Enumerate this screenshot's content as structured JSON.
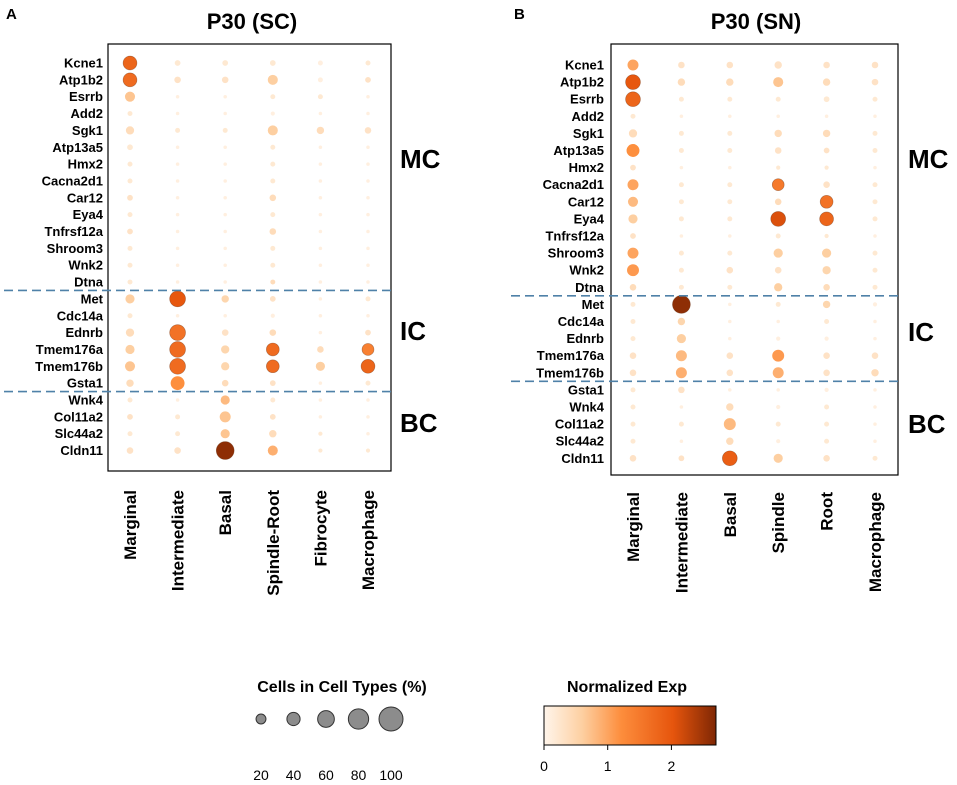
{
  "colors": {
    "cmap_low": "#fff5eb",
    "cmap_mid": "#fd8d3c",
    "cmap_high": "#e6550d",
    "cmap_max": "#7f2704",
    "divider": "#4f81a8"
  },
  "chart_data": [
    {
      "type": "dotplot",
      "panel_label": "A",
      "title": "P30 (SC)",
      "genes": [
        "Kcne1",
        "Atp1b2",
        "Esrrb",
        "Add2",
        "Sgk1",
        "Atp13a5",
        "Hmx2",
        "Cacna2d1",
        "Car12",
        "Eya4",
        "Tnfrsf12a",
        "Shroom3",
        "Wnk2",
        "Dtna",
        "Met",
        "Cdc14a",
        "Ednrb",
        "Tmem176a",
        "Tmem176b",
        "Gsta1",
        "Wnk4",
        "Col11a2",
        "Slc44a2",
        "Cldn11"
      ],
      "cell_types": [
        "Marginal",
        "Intermediate",
        "Basal",
        "Spindle-Root",
        "Fibrocyte",
        "Macrophage"
      ],
      "groups": [
        {
          "label": "MC",
          "from": 0,
          "to": 13
        },
        {
          "label": "IC",
          "from": 14,
          "to": 19
        },
        {
          "label": "BC",
          "from": 20,
          "to": 23
        }
      ],
      "pct": [
        [
          70,
          25,
          25,
          25,
          20,
          20
        ],
        [
          70,
          30,
          30,
          50,
          20,
          25
        ],
        [
          50,
          10,
          10,
          20,
          20,
          10
        ],
        [
          20,
          10,
          10,
          15,
          10,
          10
        ],
        [
          40,
          20,
          20,
          50,
          35,
          30
        ],
        [
          25,
          10,
          10,
          20,
          10,
          10
        ],
        [
          20,
          10,
          10,
          20,
          10,
          10
        ],
        [
          20,
          10,
          10,
          20,
          10,
          10
        ],
        [
          25,
          10,
          10,
          30,
          10,
          10
        ],
        [
          20,
          10,
          10,
          20,
          10,
          10
        ],
        [
          25,
          10,
          10,
          30,
          10,
          10
        ],
        [
          20,
          10,
          10,
          20,
          10,
          10
        ],
        [
          20,
          10,
          10,
          20,
          10,
          10
        ],
        [
          20,
          10,
          10,
          20,
          10,
          10
        ],
        [
          45,
          80,
          35,
          25,
          10,
          20
        ],
        [
          20,
          10,
          10,
          15,
          10,
          10
        ],
        [
          40,
          80,
          30,
          30,
          10,
          25
        ],
        [
          45,
          80,
          40,
          65,
          30,
          60
        ],
        [
          50,
          80,
          40,
          65,
          45,
          70
        ],
        [
          35,
          70,
          30,
          25,
          10,
          20
        ],
        [
          20,
          10,
          45,
          20,
          10,
          10
        ],
        [
          25,
          20,
          55,
          25,
          10,
          10
        ],
        [
          20,
          20,
          45,
          35,
          15,
          10
        ],
        [
          30,
          30,
          90,
          50,
          15,
          15
        ]
      ],
      "exp": [
        [
          1.8,
          0.2,
          0.2,
          0.2,
          0.1,
          0.2
        ],
        [
          1.7,
          0.3,
          0.3,
          0.6,
          0.1,
          0.3
        ],
        [
          0.7,
          0.1,
          0.1,
          0.2,
          0.2,
          0.1
        ],
        [
          0.2,
          0.1,
          0.1,
          0.1,
          0.1,
          0.1
        ],
        [
          0.4,
          0.2,
          0.2,
          0.6,
          0.4,
          0.3
        ],
        [
          0.2,
          0.1,
          0.1,
          0.2,
          0.1,
          0.1
        ],
        [
          0.2,
          0.1,
          0.1,
          0.2,
          0.1,
          0.1
        ],
        [
          0.2,
          0.1,
          0.1,
          0.2,
          0.1,
          0.1
        ],
        [
          0.3,
          0.1,
          0.1,
          0.4,
          0.1,
          0.1
        ],
        [
          0.2,
          0.1,
          0.1,
          0.2,
          0.1,
          0.1
        ],
        [
          0.3,
          0.1,
          0.1,
          0.4,
          0.1,
          0.1
        ],
        [
          0.2,
          0.1,
          0.1,
          0.2,
          0.1,
          0.1
        ],
        [
          0.2,
          0.1,
          0.1,
          0.2,
          0.1,
          0.1
        ],
        [
          0.2,
          0.1,
          0.1,
          0.4,
          0.1,
          0.1
        ],
        [
          0.6,
          2.0,
          0.5,
          0.3,
          0.1,
          0.2
        ],
        [
          0.2,
          0.1,
          0.1,
          0.1,
          0.1,
          0.1
        ],
        [
          0.4,
          1.6,
          0.3,
          0.4,
          0.1,
          0.3
        ],
        [
          0.6,
          1.7,
          0.5,
          1.7,
          0.4,
          1.4
        ],
        [
          0.7,
          1.7,
          0.5,
          1.7,
          0.6,
          1.8
        ],
        [
          0.4,
          1.2,
          0.4,
          0.3,
          0.1,
          0.2
        ],
        [
          0.2,
          0.1,
          0.8,
          0.2,
          0.1,
          0.1
        ],
        [
          0.3,
          0.2,
          0.7,
          0.3,
          0.1,
          0.1
        ],
        [
          0.2,
          0.2,
          0.7,
          0.4,
          0.2,
          0.1
        ],
        [
          0.3,
          0.3,
          2.6,
          0.9,
          0.2,
          0.2
        ]
      ]
    },
    {
      "type": "dotplot",
      "panel_label": "B",
      "title": "P30 (SN)",
      "genes": [
        "Kcne1",
        "Atp1b2",
        "Esrrb",
        "Add2",
        "Sgk1",
        "Atp13a5",
        "Hmx2",
        "Cacna2d1",
        "Car12",
        "Eya4",
        "Tnfrsf12a",
        "Shroom3",
        "Wnk2",
        "Dtna",
        "Met",
        "Cdc14a",
        "Ednrb",
        "Tmem176a",
        "Tmem176b",
        "Gsta1",
        "Wnk4",
        "Col11a2",
        "Slc44a2",
        "Cldn11"
      ],
      "cell_types": [
        "Marginal",
        "Intermediate",
        "Basal",
        "Spindle",
        "Root",
        "Macrophage"
      ],
      "groups": [
        {
          "label": "MC",
          "from": 0,
          "to": 13
        },
        {
          "label": "IC",
          "from": 14,
          "to": 18
        },
        {
          "label": "BC",
          "from": 19,
          "to": 23
        }
      ],
      "pct": [
        [
          55,
          30,
          30,
          35,
          30,
          30
        ],
        [
          75,
          35,
          35,
          50,
          35,
          30
        ],
        [
          75,
          20,
          20,
          20,
          25,
          20
        ],
        [
          20,
          10,
          10,
          10,
          10,
          10
        ],
        [
          40,
          20,
          20,
          35,
          35,
          20
        ],
        [
          65,
          20,
          20,
          30,
          25,
          20
        ],
        [
          25,
          10,
          10,
          15,
          15,
          10
        ],
        [
          55,
          20,
          20,
          60,
          30,
          20
        ],
        [
          50,
          20,
          20,
          30,
          65,
          20
        ],
        [
          45,
          20,
          20,
          75,
          70,
          20
        ],
        [
          25,
          10,
          10,
          20,
          15,
          10
        ],
        [
          55,
          20,
          20,
          45,
          45,
          20
        ],
        [
          60,
          20,
          30,
          30,
          40,
          20
        ],
        [
          30,
          20,
          20,
          40,
          30,
          20
        ],
        [
          20,
          90,
          10,
          20,
          35,
          15
        ],
        [
          20,
          35,
          10,
          10,
          20,
          10
        ],
        [
          20,
          45,
          10,
          15,
          15,
          10
        ],
        [
          30,
          55,
          30,
          60,
          30,
          30
        ],
        [
          30,
          55,
          30,
          55,
          30,
          35
        ],
        [
          20,
          30,
          10,
          10,
          15,
          10
        ],
        [
          20,
          10,
          35,
          15,
          20,
          10
        ],
        [
          20,
          20,
          60,
          20,
          20,
          10
        ],
        [
          20,
          10,
          35,
          15,
          20,
          10
        ],
        [
          30,
          25,
          75,
          45,
          30,
          20
        ]
      ],
      "exp": [
        [
          1.0,
          0.3,
          0.3,
          0.3,
          0.3,
          0.3
        ],
        [
          2.0,
          0.4,
          0.4,
          0.7,
          0.4,
          0.3
        ],
        [
          1.8,
          0.2,
          0.2,
          0.2,
          0.2,
          0.2
        ],
        [
          0.2,
          0.1,
          0.1,
          0.1,
          0.1,
          0.1
        ],
        [
          0.4,
          0.2,
          0.2,
          0.4,
          0.4,
          0.2
        ],
        [
          1.2,
          0.2,
          0.2,
          0.3,
          0.3,
          0.2
        ],
        [
          0.3,
          0.1,
          0.1,
          0.2,
          0.2,
          0.1
        ],
        [
          1.0,
          0.2,
          0.2,
          1.5,
          0.3,
          0.2
        ],
        [
          0.8,
          0.2,
          0.2,
          0.4,
          1.6,
          0.2
        ],
        [
          0.6,
          0.2,
          0.2,
          2.1,
          1.8,
          0.2
        ],
        [
          0.3,
          0.1,
          0.1,
          0.2,
          0.2,
          0.1
        ],
        [
          1.0,
          0.2,
          0.2,
          0.6,
          0.6,
          0.2
        ],
        [
          1.1,
          0.2,
          0.3,
          0.3,
          0.5,
          0.2
        ],
        [
          0.4,
          0.2,
          0.2,
          0.6,
          0.4,
          0.2
        ],
        [
          0.2,
          2.6,
          0.1,
          0.2,
          0.5,
          0.1
        ],
        [
          0.2,
          0.5,
          0.1,
          0.1,
          0.2,
          0.1
        ],
        [
          0.2,
          0.6,
          0.1,
          0.1,
          0.1,
          0.1
        ],
        [
          0.3,
          0.8,
          0.3,
          1.1,
          0.3,
          0.3
        ],
        [
          0.3,
          0.9,
          0.3,
          0.9,
          0.3,
          0.4
        ],
        [
          0.2,
          0.3,
          0.1,
          0.1,
          0.1,
          0.1
        ],
        [
          0.2,
          0.1,
          0.4,
          0.1,
          0.2,
          0.1
        ],
        [
          0.2,
          0.2,
          0.8,
          0.2,
          0.2,
          0.1
        ],
        [
          0.2,
          0.1,
          0.4,
          0.1,
          0.2,
          0.1
        ],
        [
          0.3,
          0.3,
          1.9,
          0.6,
          0.3,
          0.2
        ]
      ]
    }
  ],
  "size_legend": {
    "title": "Cells in Cell Types (%)",
    "values": [
      20,
      40,
      60,
      80,
      100
    ],
    "labels": [
      "20",
      "40",
      "60",
      "80",
      "100"
    ]
  },
  "color_legend": {
    "title": "Normalized Exp",
    "min": 0,
    "max": 2.7,
    "ticks": [
      0,
      1,
      2
    ],
    "tick_labels": [
      "0",
      "1",
      "2"
    ]
  }
}
